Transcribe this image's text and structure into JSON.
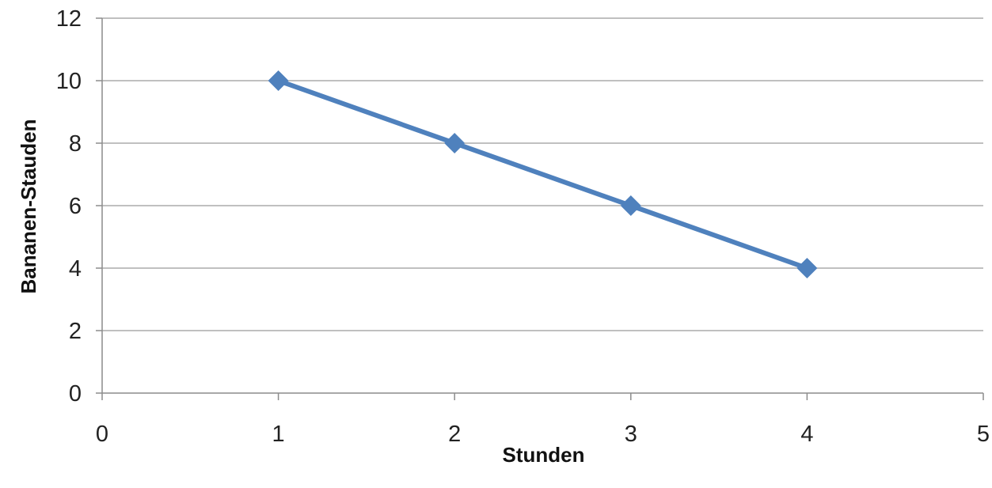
{
  "chart_data": {
    "type": "line",
    "xlabel": "Stunden",
    "ylabel": "Bananen-Stauden",
    "xlim": [
      0,
      5
    ],
    "ylim": [
      0,
      12
    ],
    "x_ticks": [
      "0",
      "1",
      "2",
      "3",
      "4",
      "5"
    ],
    "y_ticks": [
      "0",
      "2",
      "4",
      "6",
      "8",
      "10",
      "12"
    ],
    "grid": "horizontal",
    "legend": "none",
    "marker": "diamond",
    "series": [
      {
        "color": "#4f81bd",
        "x": [
          1,
          2,
          3,
          4
        ],
        "y": [
          10,
          8,
          6,
          4
        ]
      }
    ]
  }
}
